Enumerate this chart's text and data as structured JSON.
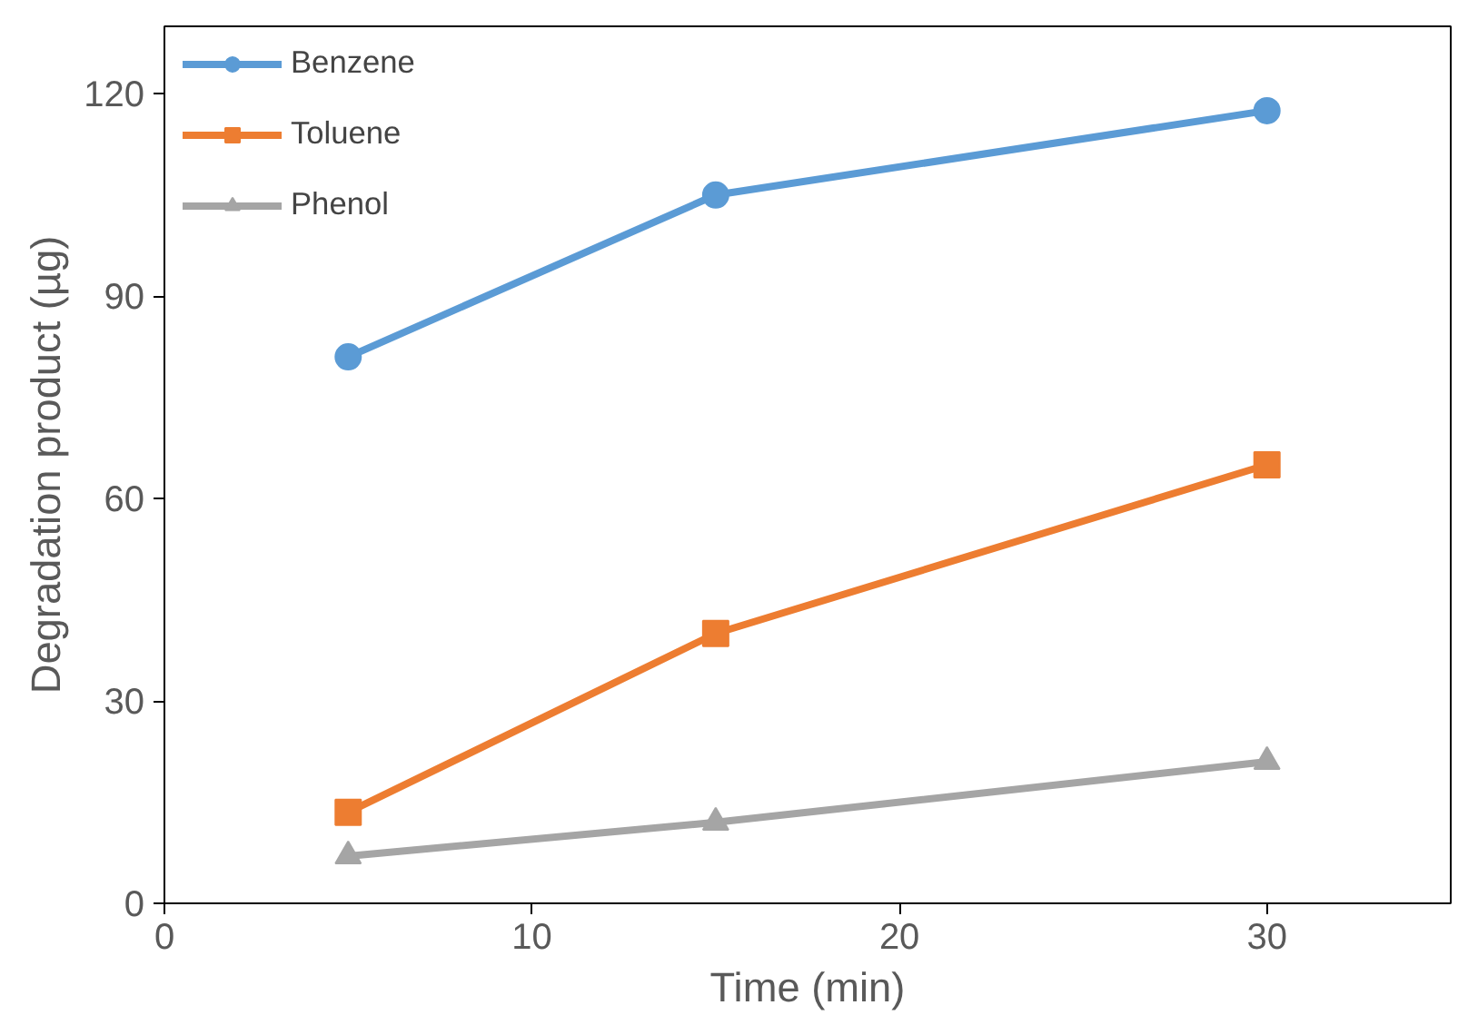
{
  "chart_data": {
    "type": "line",
    "xlabel": "Time (min)",
    "ylabel": "Degradation product (µg)",
    "x": [
      5,
      15,
      30
    ],
    "series": [
      {
        "name": "Benzene",
        "color": "#5b9bd5",
        "marker": "circle",
        "values": [
          81,
          105,
          117.5
        ]
      },
      {
        "name": "Toluene",
        "color": "#ed7d31",
        "marker": "square",
        "values": [
          13.5,
          40,
          65
        ]
      },
      {
        "name": "Phenol",
        "color": "#a5a5a5",
        "marker": "triangle",
        "values": [
          7,
          12,
          21
        ]
      }
    ],
    "xlim": [
      0,
      35
    ],
    "ylim": [
      0,
      130
    ],
    "xticks": [
      0,
      10,
      20,
      30
    ],
    "yticks": [
      0,
      30,
      60,
      90,
      120
    ],
    "grid": false,
    "legend": "top left",
    "line_style": "solid"
  }
}
